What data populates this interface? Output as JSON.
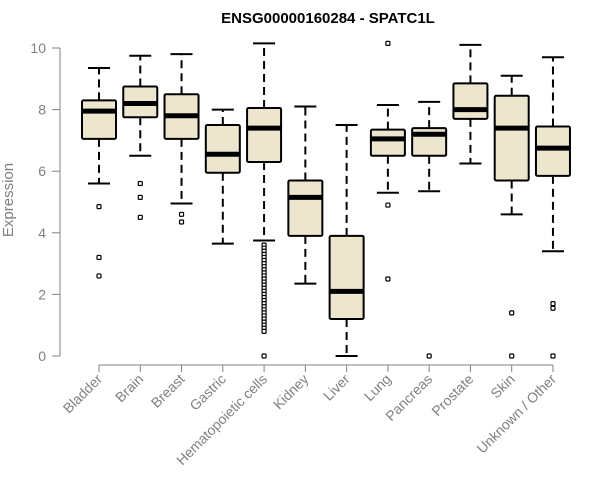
{
  "chart_data": {
    "type": "boxplot",
    "title": "ENSG00000160284 - SPATC1L",
    "xlabel": "",
    "ylabel": "Expression",
    "ylim": [
      0,
      10
    ],
    "yticks": [
      0,
      2,
      4,
      6,
      8,
      10
    ],
    "box_fill": "#ede6cf",
    "line_color": "#000000",
    "axis_color": "#808080",
    "categories": [
      "Bladder",
      "Brain",
      "Breast",
      "Gastric",
      "Hematopoietic cells",
      "Kidney",
      "Liver",
      "Lung",
      "Pancreas",
      "Prostate",
      "Skin",
      "Unknown / Other"
    ],
    "boxes": [
      {
        "whisker_low": 5.6,
        "q1": 7.05,
        "median": 7.95,
        "q3": 8.3,
        "whisker_high": 9.35,
        "outliers": [
          4.85,
          3.2,
          2.6
        ]
      },
      {
        "whisker_low": 6.5,
        "q1": 7.75,
        "median": 8.2,
        "q3": 8.75,
        "whisker_high": 9.75,
        "outliers": [
          5.6,
          5.15,
          4.5
        ]
      },
      {
        "whisker_low": 4.95,
        "q1": 7.05,
        "median": 7.8,
        "q3": 8.5,
        "whisker_high": 9.8,
        "outliers": [
          4.6,
          4.35
        ]
      },
      {
        "whisker_low": 3.65,
        "q1": 5.95,
        "median": 6.55,
        "q3": 7.5,
        "whisker_high": 8.0,
        "outliers": []
      },
      {
        "whisker_low": 3.75,
        "q1": 6.3,
        "median": 7.4,
        "q3": 8.05,
        "whisker_high": 10.15,
        "outliers": [
          3.6,
          3.5,
          3.4,
          3.3,
          3.2,
          3.1,
          3.0,
          2.9,
          2.8,
          2.7,
          2.6,
          2.5,
          2.4,
          2.3,
          2.2,
          2.1,
          2.0,
          1.9,
          1.8,
          1.7,
          1.6,
          1.5,
          1.4,
          1.3,
          1.2,
          1.1,
          1.0,
          0.9,
          0.8,
          0.0
        ]
      },
      {
        "whisker_low": 2.35,
        "q1": 3.9,
        "median": 5.15,
        "q3": 5.7,
        "whisker_high": 8.1,
        "outliers": []
      },
      {
        "whisker_low": 0.0,
        "q1": 1.2,
        "median": 2.1,
        "q3": 3.9,
        "whisker_high": 7.5,
        "outliers": []
      },
      {
        "whisker_low": 5.3,
        "q1": 6.5,
        "median": 7.05,
        "q3": 7.35,
        "whisker_high": 8.15,
        "outliers": [
          10.15,
          4.9,
          2.5
        ]
      },
      {
        "whisker_low": 5.35,
        "q1": 6.5,
        "median": 7.2,
        "q3": 7.4,
        "whisker_high": 8.25,
        "outliers": [
          0.0
        ]
      },
      {
        "whisker_low": 6.25,
        "q1": 7.7,
        "median": 8.0,
        "q3": 8.85,
        "whisker_high": 10.1,
        "outliers": []
      },
      {
        "whisker_low": 4.6,
        "q1": 5.7,
        "median": 7.4,
        "q3": 8.45,
        "whisker_high": 9.1,
        "outliers": [
          1.4,
          0.0
        ]
      },
      {
        "whisker_low": 3.4,
        "q1": 5.85,
        "median": 6.75,
        "q3": 7.45,
        "whisker_high": 9.7,
        "outliers": [
          1.7,
          1.55,
          0.0
        ]
      }
    ]
  }
}
